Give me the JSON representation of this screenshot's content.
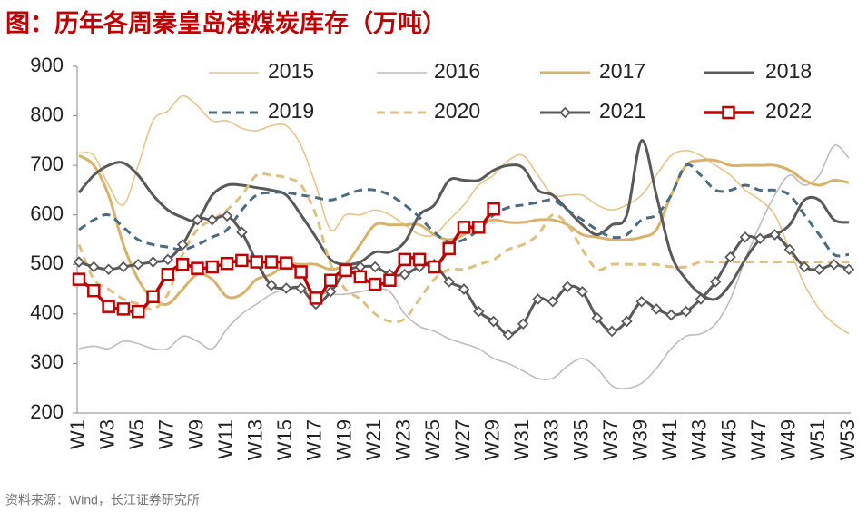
{
  "chart_data": {
    "type": "line",
    "title": "图：历年各周秦皇岛港煤炭库存（万吨）",
    "source": "资料来源：Wind，长江证券研究所",
    "categories": [
      "W1",
      null,
      "W3",
      null,
      "W5",
      null,
      "W7",
      null,
      "W9",
      null,
      "W11",
      null,
      "W13",
      null,
      "W15",
      null,
      "W17",
      null,
      "W19",
      null,
      "W21",
      null,
      "W23",
      null,
      "W25",
      null,
      "W27",
      null,
      "W29",
      null,
      "W31",
      null,
      "W33",
      null,
      "W35",
      null,
      "W37",
      null,
      "W39",
      null,
      "W41",
      null,
      "W43",
      null,
      "W45",
      null,
      "W47",
      null,
      "W49",
      null,
      "W51",
      null,
      "W53"
    ],
    "ylim": [
      200,
      900
    ],
    "yticks": [
      200,
      300,
      400,
      500,
      600,
      700,
      800,
      900
    ],
    "grid": false,
    "series": [
      {
        "name": "2015",
        "color": "#e8c48a",
        "width": 1.6,
        "values": [
          725,
          720,
          660,
          620,
          700,
          790,
          810,
          840,
          820,
          790,
          790,
          775,
          770,
          780,
          780,
          740,
          660,
          570,
          600,
          600,
          610,
          600,
          580,
          560,
          560,
          590,
          620,
          660,
          680,
          710,
          720,
          680,
          640,
          640,
          640,
          620,
          610,
          620,
          640,
          680,
          720,
          730,
          720,
          700,
          680,
          650,
          630,
          600,
          530,
          460,
          410,
          380,
          360
        ]
      },
      {
        "name": "2016",
        "color": "#bdbdbd",
        "width": 1.6,
        "values": [
          330,
          335,
          330,
          345,
          340,
          330,
          330,
          355,
          345,
          330,
          370,
          400,
          420,
          440,
          450,
          450,
          445,
          440,
          440,
          445,
          450,
          445,
          400,
          375,
          365,
          350,
          340,
          330,
          310,
          300,
          285,
          270,
          270,
          295,
          310,
          290,
          255,
          250,
          260,
          290,
          330,
          355,
          360,
          380,
          430,
          510,
          580,
          640,
          680,
          660,
          680,
          740,
          715
        ]
      },
      {
        "name": "2017",
        "color": "#d9b26a",
        "width": 3,
        "values": [
          720,
          700,
          640,
          540,
          470,
          430,
          420,
          450,
          480,
          470,
          435,
          440,
          470,
          480,
          500,
          500,
          500,
          490,
          500,
          540,
          580,
          580,
          580,
          580,
          560,
          550,
          560,
          580,
          590,
          585,
          585,
          590,
          590,
          580,
          560,
          555,
          550,
          550,
          555,
          570,
          640,
          700,
          710,
          710,
          700,
          700,
          700,
          700,
          690,
          670,
          660,
          670,
          665
        ]
      },
      {
        "name": "2018",
        "color": "#595959",
        "width": 3,
        "values": [
          645,
          680,
          700,
          705,
          680,
          640,
          610,
          595,
          590,
          640,
          660,
          660,
          655,
          650,
          640,
          600,
          555,
          510,
          500,
          505,
          525,
          525,
          545,
          600,
          620,
          670,
          670,
          670,
          690,
          700,
          695,
          650,
          640,
          610,
          580,
          560,
          580,
          600,
          750,
          640,
          520,
          470,
          440,
          430,
          460,
          510,
          550,
          560,
          580,
          630,
          630,
          590,
          585
        ]
      },
      {
        "name": "2019",
        "color": "#4a6b80",
        "width": 3,
        "dash": true,
        "values": [
          570,
          590,
          600,
          575,
          550,
          540,
          535,
          530,
          540,
          555,
          570,
          610,
          640,
          645,
          645,
          640,
          635,
          630,
          640,
          650,
          650,
          640,
          620,
          595,
          565,
          545,
          550,
          570,
          600,
          615,
          620,
          625,
          630,
          610,
          590,
          570,
          555,
          560,
          590,
          600,
          640,
          700,
          680,
          650,
          650,
          660,
          650,
          650,
          640,
          600,
          560,
          520,
          520
        ]
      },
      {
        "name": "2020",
        "color": "#e0c080",
        "width": 3,
        "dash": true,
        "values": [
          540,
          470,
          450,
          430,
          420,
          410,
          440,
          520,
          570,
          590,
          610,
          640,
          680,
          680,
          675,
          660,
          600,
          500,
          450,
          430,
          400,
          385,
          390,
          430,
          470,
          490,
          490,
          500,
          510,
          530,
          540,
          560,
          600,
          580,
          530,
          490,
          500,
          500,
          500,
          500,
          495,
          495,
          505,
          505,
          505,
          505,
          505,
          505,
          505,
          505,
          505,
          505,
          505
        ]
      },
      {
        "name": "2021",
        "color": "#595959",
        "width": 3,
        "marker": "diamond",
        "values": [
          505,
          495,
          490,
          495,
          500,
          505,
          510,
          540,
          590,
          590,
          598,
          565,
          505,
          458,
          452,
          452,
          420,
          445,
          485,
          495,
          495,
          480,
          480,
          495,
          500,
          465,
          450,
          405,
          385,
          358,
          380,
          430,
          425,
          455,
          445,
          392,
          365,
          385,
          425,
          410,
          398,
          405,
          430,
          465,
          515,
          555,
          552,
          560,
          530,
          495,
          490,
          500,
          490
        ]
      },
      {
        "name": "2022",
        "color": "#c00000",
        "width": 3.5,
        "marker": "square",
        "values": [
          470,
          447,
          415,
          410,
          405,
          435,
          480,
          500,
          492,
          495,
          502,
          508,
          505,
          505,
          503,
          485,
          432,
          468,
          488,
          475,
          460,
          468,
          510,
          510,
          495,
          532,
          575,
          575,
          612,
          null,
          null,
          null,
          null,
          null,
          null,
          null,
          null,
          null,
          null,
          null,
          null,
          null,
          null,
          null,
          null,
          null,
          null,
          null,
          null,
          null,
          null,
          null,
          null
        ]
      }
    ]
  }
}
